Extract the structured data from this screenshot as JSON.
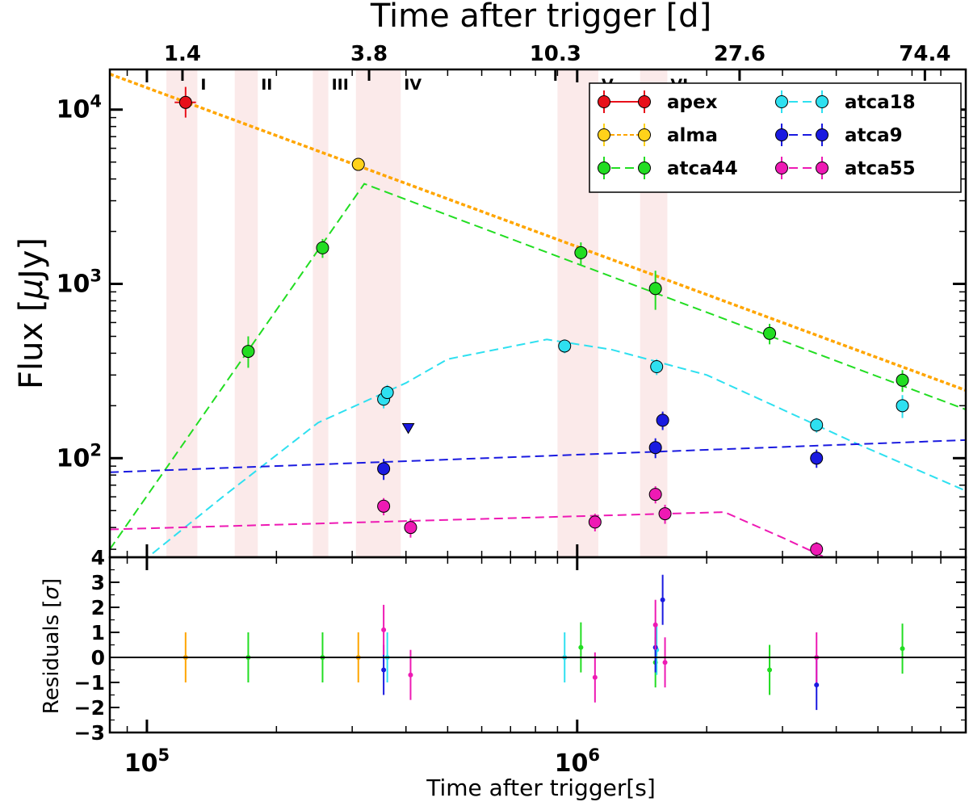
{
  "chart_data": {
    "type": "scatter",
    "x_scale": "log",
    "y_scale": "log",
    "xlabel": "Time after trigger[s]",
    "ylabel": "Flux [$\\mu$Jy]",
    "ylabel_main": "Flux [",
    "ylabel_mu": "μ",
    "ylabel_rest": "Jy]",
    "xlim": [
      82000,
      8000000
    ],
    "ylim": [
      27,
      17000
    ],
    "x_ticks": [
      100000,
      1000000
    ],
    "x_tick_labels": [
      {
        "base": "10",
        "exp": "5"
      },
      {
        "base": "10",
        "exp": "6"
      }
    ],
    "y_ticks": [
      100,
      1000,
      10000
    ],
    "y_tick_labels": [
      {
        "base": "10",
        "exp": "2"
      },
      {
        "base": "10",
        "exp": "3"
      },
      {
        "base": "10",
        "exp": "4"
      }
    ],
    "top_axis": {
      "label": "Time after trigger [d]",
      "ticks_days": [
        1.4,
        3.8,
        10.3,
        27.6,
        74.4
      ],
      "tick_labels": [
        "1.4",
        "3.8",
        "10.3",
        "27.6",
        "74.4"
      ]
    },
    "residuals": {
      "ylabel": "Residuals [$\\sigma$]",
      "ylabel_main": "Residuals [",
      "ylabel_sigma": "σ",
      "ylabel_rest": "]",
      "ylim": [
        -3,
        4
      ],
      "y_ticks": [
        -3,
        -2,
        -1,
        0,
        1,
        2,
        3,
        4
      ],
      "y_tick_labels": [
        "−3",
        "−2",
        "−1",
        "0",
        "1",
        "2",
        "3",
        "4"
      ]
    },
    "epoch_bands": [
      {
        "label": "I",
        "x0": 111000,
        "x1": 131000
      },
      {
        "label": "II",
        "x0": 160000,
        "x1": 181000
      },
      {
        "label": "III",
        "x0": 243000,
        "x1": 264000
      },
      {
        "label": "IV",
        "x0": 306000,
        "x1": 389000
      },
      {
        "label": "V",
        "x0": 900000,
        "x1": 1120000
      },
      {
        "label": "VI",
        "x0": 1400000,
        "x1": 1620000
      }
    ],
    "legend": {
      "placement": "top-right",
      "entries": [
        "apex",
        "alma",
        "atca44",
        "atca18",
        "atca9",
        "atca55"
      ]
    },
    "series": [
      {
        "name": "apex",
        "color": "#e8101a",
        "line": null,
        "points": [
          {
            "x": 123000,
            "y": 11000,
            "yerr_lo": 2000,
            "yerr_hi": 2500,
            "xerr": 7000
          }
        ],
        "upper_limits": [],
        "residuals": []
      },
      {
        "name": "alma",
        "color": "#ffd21a",
        "line_color": "#ffa500",
        "line_style": "dotted",
        "line": [
          [
            82000,
            16000
          ],
          [
            8000000,
            245
          ]
        ],
        "points": [
          {
            "x": 310000,
            "y": 4850,
            "yerr_lo": 250,
            "yerr_hi": 250
          }
        ],
        "upper_limits": [],
        "residuals": [
          {
            "x": 123000,
            "r": 0.0,
            "err": 1.0,
            "color": "#ffa500"
          },
          {
            "x": 310000,
            "r": 0.0,
            "err": 1.0,
            "color": "#ffa500"
          }
        ]
      },
      {
        "name": "atca44",
        "color": "#22dd22",
        "line_style": "dashed",
        "line": [
          [
            82000,
            30
          ],
          [
            320000,
            3750
          ],
          [
            8000000,
            190
          ]
        ],
        "points": [
          {
            "x": 172000,
            "y": 410,
            "yerr_lo": 80,
            "yerr_hi": 90
          },
          {
            "x": 256000,
            "y": 1610,
            "yerr_lo": 200,
            "yerr_hi": 200
          },
          {
            "x": 1020000,
            "y": 1510,
            "yerr_lo": 220,
            "yerr_hi": 220
          },
          {
            "x": 1520000,
            "y": 940,
            "yerr_lo": 230,
            "yerr_hi": 250
          },
          {
            "x": 2800000,
            "y": 520,
            "yerr_lo": 70,
            "yerr_hi": 70
          },
          {
            "x": 5700000,
            "y": 280,
            "yerr_lo": 40,
            "yerr_hi": 40
          }
        ],
        "upper_limits": [],
        "residuals": [
          {
            "x": 172000,
            "r": 0.0,
            "err": 1.0
          },
          {
            "x": 256000,
            "r": 0.0,
            "err": 1.0
          },
          {
            "x": 1020000,
            "r": 0.4,
            "err": 1.0
          },
          {
            "x": 1520000,
            "r": -0.2,
            "err": 1.0
          },
          {
            "x": 2800000,
            "r": -0.5,
            "err": 1.0
          },
          {
            "x": 5700000,
            "r": 0.35,
            "err": 1.0
          }
        ]
      },
      {
        "name": "atca18",
        "color": "#2ee0f0",
        "line_style": "dashed",
        "line": [
          [
            82000,
            18
          ],
          [
            150000,
            60
          ],
          [
            250000,
            160
          ],
          [
            400000,
            270
          ],
          [
            500000,
            370
          ],
          [
            850000,
            480
          ],
          [
            1200000,
            420
          ],
          [
            2000000,
            300
          ],
          [
            3000000,
            190
          ],
          [
            4500000,
            120
          ],
          [
            8000000,
            65
          ]
        ],
        "points": [
          {
            "x": 355000,
            "y": 218,
            "yerr_lo": 25,
            "yerr_hi": 25
          },
          {
            "x": 362000,
            "y": 238,
            "yerr_lo": 25,
            "yerr_hi": 25
          },
          {
            "x": 935000,
            "y": 440,
            "yerr_lo": 40,
            "yerr_hi": 40
          },
          {
            "x": 1530000,
            "y": 335,
            "yerr_lo": 35,
            "yerr_hi": 35
          },
          {
            "x": 3600000,
            "y": 155,
            "yerr_lo": 15,
            "yerr_hi": 15
          },
          {
            "x": 5700000,
            "y": 200,
            "yerr_lo": 30,
            "yerr_hi": 30
          }
        ],
        "upper_limits": [],
        "residuals": [
          {
            "x": 362000,
            "r": 0.0,
            "err": 1.0
          },
          {
            "x": 935000,
            "r": 0.0,
            "err": 1.0
          },
          {
            "x": 1530000,
            "r": 0.3,
            "err": 1.0
          }
        ]
      },
      {
        "name": "atca9",
        "color": "#1a1ae0",
        "line_style": "dashed",
        "line": [
          [
            82000,
            83
          ],
          [
            8000000,
            127
          ]
        ],
        "points": [
          {
            "x": 355000,
            "y": 87,
            "yerr_lo": 12,
            "yerr_hi": 12
          },
          {
            "x": 1520000,
            "y": 115,
            "yerr_lo": 15,
            "yerr_hi": 15
          },
          {
            "x": 1580000,
            "y": 165,
            "yerr_lo": 20,
            "yerr_hi": 20
          },
          {
            "x": 3600000,
            "y": 100,
            "yerr_lo": 12,
            "yerr_hi": 12
          }
        ],
        "upper_limits": [
          {
            "x": 405000,
            "y": 148
          }
        ],
        "residuals": [
          {
            "x": 355000,
            "r": -0.5,
            "err": 1.0
          },
          {
            "x": 1520000,
            "r": 0.4,
            "err": 1.0
          },
          {
            "x": 1580000,
            "r": 2.3,
            "err": 1.0
          },
          {
            "x": 3600000,
            "r": -1.1,
            "err": 1.0
          }
        ]
      },
      {
        "name": "atca55",
        "color": "#ee1ab4",
        "line_style": "dashed",
        "line": [
          [
            82000,
            39
          ],
          [
            2200000,
            49
          ],
          [
            3000000,
            35
          ],
          [
            4500000,
            22
          ],
          [
            8000000,
            12
          ]
        ],
        "points": [
          {
            "x": 355000,
            "y": 53,
            "yerr_lo": 6,
            "yerr_hi": 6
          },
          {
            "x": 410000,
            "y": 40,
            "yerr_lo": 5,
            "yerr_hi": 5
          },
          {
            "x": 1100000,
            "y": 43,
            "yerr_lo": 5,
            "yerr_hi": 5
          },
          {
            "x": 1520000,
            "y": 62,
            "yerr_lo": 7,
            "yerr_hi": 7
          },
          {
            "x": 1600000,
            "y": 48,
            "yerr_lo": 6,
            "yerr_hi": 6
          },
          {
            "x": 3600000,
            "y": 30,
            "yerr_lo": 3,
            "yerr_hi": 3
          }
        ],
        "upper_limits": [],
        "residuals": [
          {
            "x": 355000,
            "r": 1.1,
            "err": 1.0
          },
          {
            "x": 410000,
            "r": -0.7,
            "err": 1.0
          },
          {
            "x": 1100000,
            "r": -0.8,
            "err": 1.0
          },
          {
            "x": 1520000,
            "r": 1.3,
            "err": 1.0
          },
          {
            "x": 1600000,
            "r": -0.2,
            "err": 1.0
          },
          {
            "x": 3600000,
            "r": 0.0,
            "err": 1.0
          }
        ]
      }
    ]
  }
}
